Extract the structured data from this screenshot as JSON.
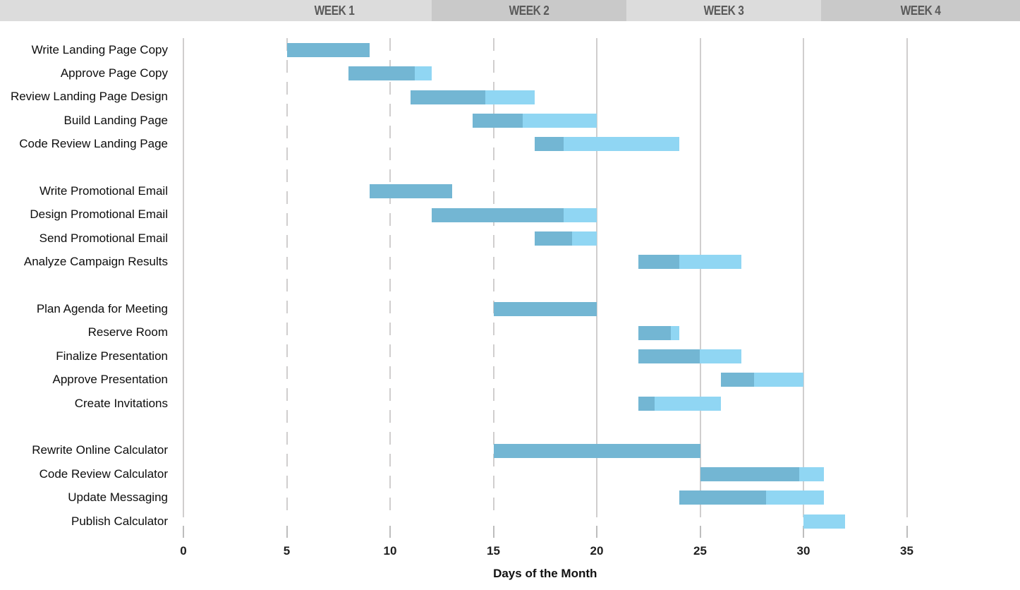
{
  "header": {
    "weeks": [
      {
        "label": "WEEK 1"
      },
      {
        "label": "WEEK 2"
      },
      {
        "label": "WEEK 3"
      },
      {
        "label": "WEEK 4"
      }
    ],
    "colors": {
      "light_block": "#dcdcdc",
      "dark_block": "#c9c9c9",
      "text": "#5a5a5a"
    }
  },
  "chart_data": {
    "type": "bar",
    "subtype": "gantt",
    "xlabel": "Days of the Month",
    "x_ticks": [
      0,
      5,
      10,
      15,
      20,
      25,
      30,
      35
    ],
    "x_range": [
      0,
      40
    ],
    "grid": true,
    "gridlines": {
      "dashed_at": [
        5,
        10,
        15
      ],
      "solid_at": [
        20,
        25,
        30,
        35
      ]
    },
    "bar_colors": {
      "complete": "#73b6d3",
      "remaining": "#90d6f3"
    },
    "tasks": [
      {
        "label": "Write Landing Page Copy",
        "start": 5,
        "end": 9,
        "percent_complete": 100,
        "group": 1
      },
      {
        "label": "Approve Page Copy",
        "start": 8,
        "end": 12,
        "percent_complete": 80,
        "group": 1
      },
      {
        "label": "Review Landing Page Design",
        "start": 11,
        "end": 17,
        "percent_complete": 60,
        "group": 1
      },
      {
        "label": "Build Landing Page",
        "start": 14,
        "end": 20,
        "percent_complete": 40,
        "group": 1
      },
      {
        "label": "Code Review Landing Page",
        "start": 17,
        "end": 24,
        "percent_complete": 20,
        "group": 1
      },
      {
        "label": "Write Promotional Email",
        "start": 9,
        "end": 13,
        "percent_complete": 100,
        "group": 2
      },
      {
        "label": "Design Promotional Email",
        "start": 12,
        "end": 20,
        "percent_complete": 80,
        "group": 2
      },
      {
        "label": "Send Promotional Email",
        "start": 17,
        "end": 20,
        "percent_complete": 60,
        "group": 2
      },
      {
        "label": "Analyze Campaign Results",
        "start": 22,
        "end": 27,
        "percent_complete": 40,
        "group": 2
      },
      {
        "label": "Plan Agenda for Meeting",
        "start": 15,
        "end": 20,
        "percent_complete": 100,
        "group": 3
      },
      {
        "label": "Reserve Room",
        "start": 22,
        "end": 24,
        "percent_complete": 80,
        "group": 3
      },
      {
        "label": "Finalize Presentation",
        "start": 22,
        "end": 27,
        "percent_complete": 60,
        "group": 3
      },
      {
        "label": "Approve Presentation",
        "start": 26,
        "end": 30,
        "percent_complete": 40,
        "group": 3
      },
      {
        "label": "Create Invitations",
        "start": 22,
        "end": 26,
        "percent_complete": 20,
        "group": 3
      },
      {
        "label": "Rewrite Online Calculator",
        "start": 15,
        "end": 25,
        "percent_complete": 100,
        "group": 4
      },
      {
        "label": "Code Review Calculator",
        "start": 25,
        "end": 31,
        "percent_complete": 80,
        "group": 4
      },
      {
        "label": "Update Messaging",
        "start": 24,
        "end": 31,
        "percent_complete": 60,
        "group": 4
      },
      {
        "label": "Publish Calculator",
        "start": 30,
        "end": 32,
        "percent_complete": 0,
        "group": 4
      }
    ]
  }
}
